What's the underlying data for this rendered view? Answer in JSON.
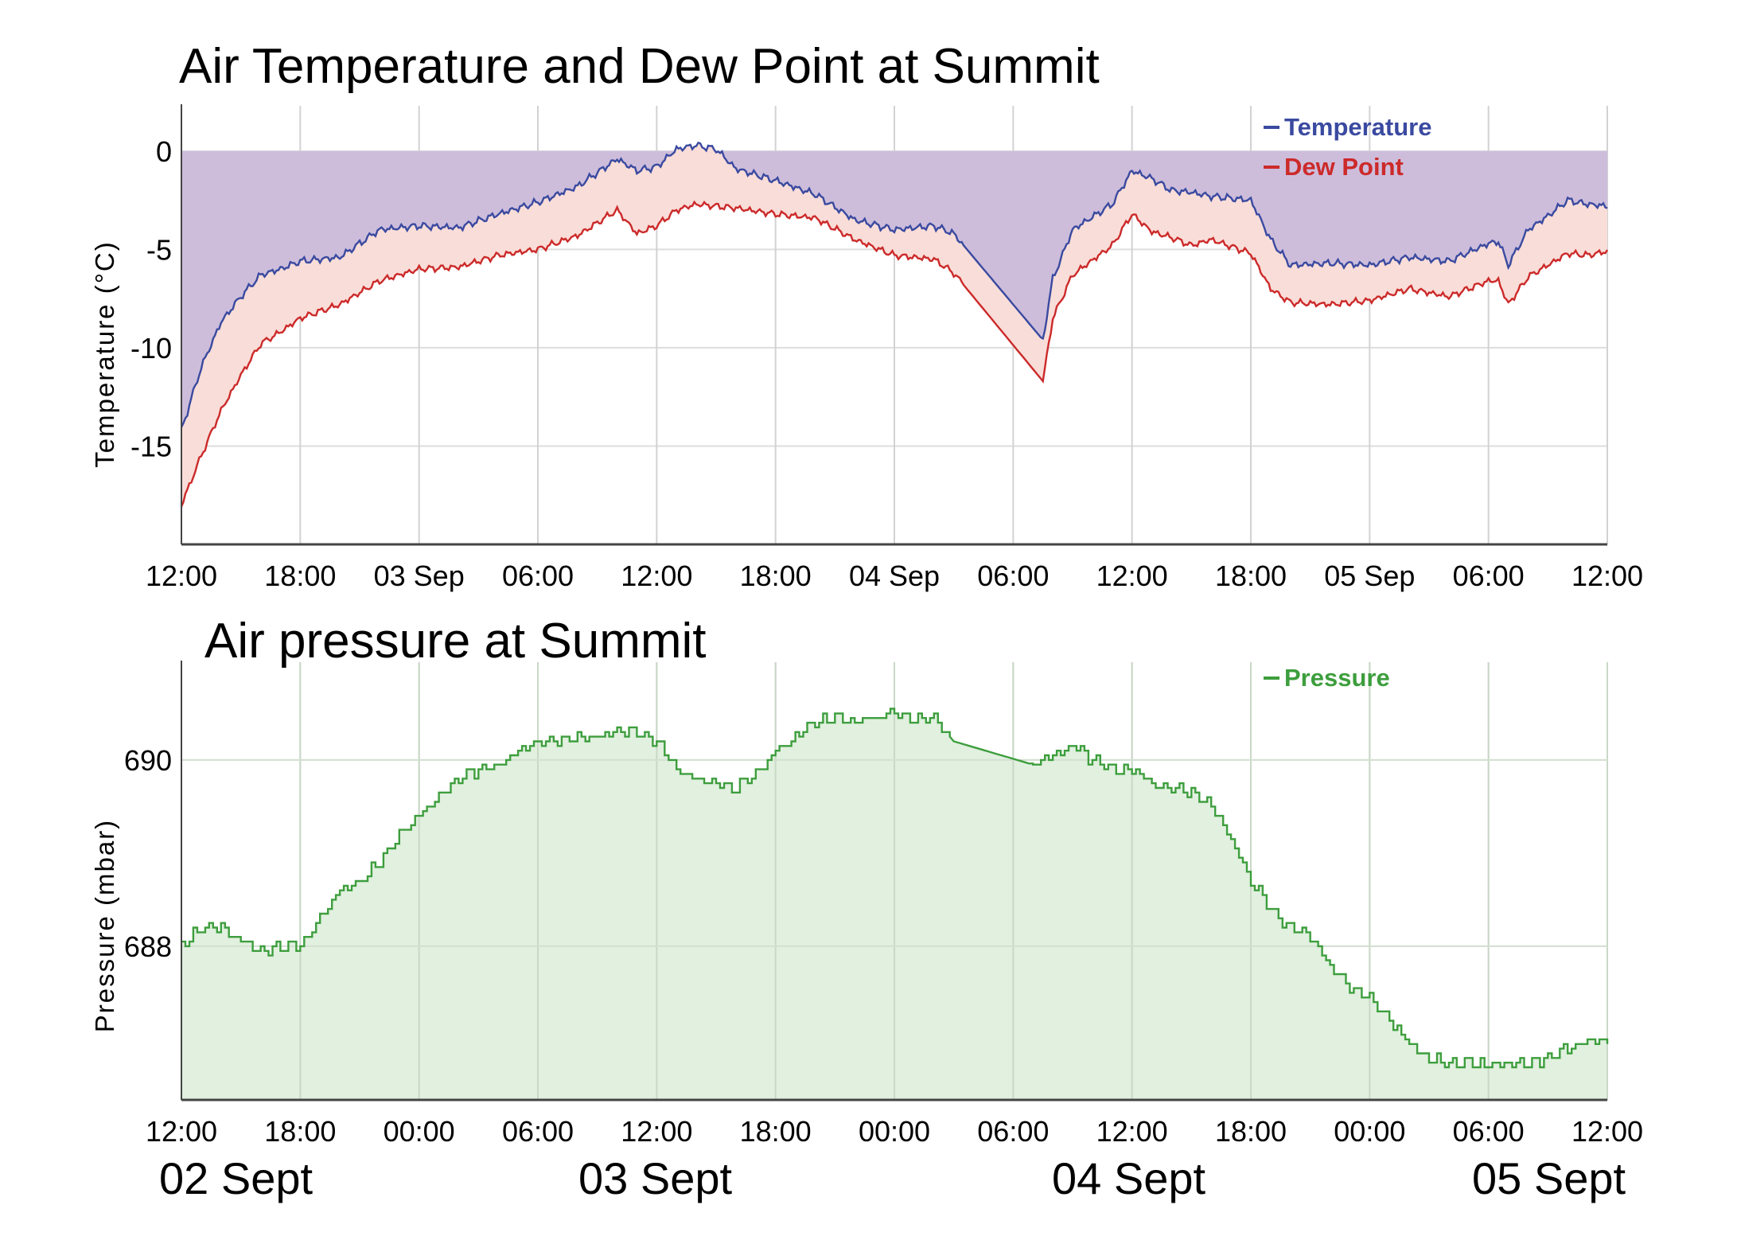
{
  "chart_data": [
    {
      "type": "line",
      "title": "Air Temperature and Dew Point at Summit",
      "xlabel": "",
      "ylabel": "Temperature (°C)",
      "ylim": [
        -20,
        2.3
      ],
      "yticks": [
        0,
        -5,
        -10,
        -15
      ],
      "ytick_labels": [
        "0",
        "-5",
        "-10",
        "-15"
      ],
      "xlim_hours": [
        0,
        72
      ],
      "xtick_hours": [
        0,
        6,
        12,
        18,
        24,
        30,
        36,
        42,
        48,
        54,
        60,
        66,
        72
      ],
      "xtick_labels": [
        "12:00",
        "18:00",
        "03 Sep",
        "06:00",
        "12:00",
        "18:00",
        "04 Sep",
        "06:00",
        "12:00",
        "18:00",
        "05 Sep",
        "06:00",
        "12:00"
      ],
      "x_unit": "hours since 02 Sep 12:00",
      "fill_above_to": 0,
      "legend": "top-right",
      "series": [
        {
          "name": "Temperature",
          "color": "#3a4aa0",
          "x": [
            0,
            1,
            2,
            3,
            4,
            5,
            6,
            8,
            10,
            12,
            14,
            16,
            18,
            20,
            22,
            23,
            24,
            25,
            26,
            27,
            28,
            30,
            32,
            34,
            36,
            38,
            39,
            43.5,
            44,
            45,
            47,
            48,
            49,
            50,
            51,
            52,
            54,
            55,
            56,
            58,
            60,
            62,
            64,
            66,
            66.5,
            67,
            68,
            69,
            70,
            71,
            72
          ],
          "values": [
            -14.2,
            -11,
            -8.7,
            -7.4,
            -6.3,
            -6,
            -5.6,
            -5.4,
            -4,
            -3.8,
            -3.9,
            -3.2,
            -2.6,
            -1.8,
            -0.4,
            -1,
            -0.8,
            0.1,
            0.3,
            0.1,
            -0.9,
            -1.5,
            -2.2,
            -3.5,
            -4,
            -3.8,
            -4.2,
            -9.6,
            -6.5,
            -4,
            -2.7,
            -1,
            -1.4,
            -2,
            -2.1,
            -2.3,
            -2.5,
            -4.5,
            -5.8,
            -5.7,
            -5.8,
            -5.4,
            -5.6,
            -4.7,
            -4.6,
            -5.8,
            -4,
            -3.3,
            -2.5,
            -2.7,
            -2.8
          ]
        },
        {
          "name": "Dew Point",
          "color": "#cc2a2a",
          "x": [
            0,
            1,
            2,
            3,
            4,
            5,
            6,
            8,
            10,
            12,
            14,
            16,
            18,
            20,
            22,
            23,
            24,
            25,
            26,
            27,
            28,
            30,
            32,
            34,
            36,
            38,
            39,
            43.5,
            44,
            45,
            47,
            48,
            49,
            50,
            51,
            52,
            54,
            55,
            56,
            58,
            60,
            62,
            64,
            66,
            66.5,
            67,
            68,
            69,
            70,
            71,
            72
          ],
          "values": [
            -18,
            -15.5,
            -13.2,
            -11.4,
            -9.8,
            -9.2,
            -8.5,
            -7.8,
            -6.6,
            -6,
            -5.9,
            -5.3,
            -5,
            -4.3,
            -3,
            -4.2,
            -3.8,
            -3,
            -2.7,
            -2.8,
            -2.9,
            -3.2,
            -3.4,
            -4.5,
            -5.3,
            -5.5,
            -6.2,
            -11.7,
            -8.5,
            -6.3,
            -4.8,
            -3.2,
            -4.1,
            -4.4,
            -4.8,
            -4.5,
            -5.2,
            -7,
            -7.7,
            -7.8,
            -7.6,
            -7,
            -7.4,
            -6.6,
            -6.6,
            -7.8,
            -6.4,
            -5.8,
            -5.2,
            -5.3,
            -5.1
          ]
        }
      ]
    },
    {
      "type": "area",
      "title": "Air pressure at Summit",
      "xlabel": "",
      "ylabel": "Pressure (mbar)",
      "ylim": [
        686.35,
        691.05
      ],
      "yticks": [
        690,
        688
      ],
      "ytick_labels": [
        "690",
        "688"
      ],
      "xlim_hours": [
        0,
        72
      ],
      "xtick_hours": [
        0,
        6,
        12,
        18,
        24,
        30,
        36,
        42,
        48,
        54,
        60,
        66,
        72
      ],
      "xtick_labels": [
        "12:00",
        "18:00",
        "00:00",
        "06:00",
        "12:00",
        "18:00",
        "00:00",
        "06:00",
        "12:00",
        "18:00",
        "00:00",
        "06:00",
        "12:00"
      ],
      "x_unit": "hours since 02 Sep 12:00",
      "legend": "top-right",
      "series": [
        {
          "name": "Pressure",
          "color": "#3d9e3d",
          "x": [
            0,
            1,
            2,
            3,
            4,
            5,
            6,
            7,
            8,
            9,
            10,
            11,
            12,
            13,
            14,
            15,
            16,
            17,
            18,
            19,
            20,
            21,
            22,
            23,
            24,
            25,
            26,
            27,
            28,
            29,
            30,
            31,
            32,
            33,
            34,
            35,
            36,
            37,
            38,
            39,
            43,
            44,
            45,
            46,
            47,
            48,
            49,
            50,
            51,
            52,
            53,
            54,
            55,
            56,
            57,
            58,
            59,
            60,
            61,
            62,
            63,
            64,
            65,
            66,
            67,
            68,
            69,
            70,
            71,
            72
          ],
          "values": [
            688,
            688.2,
            688.2,
            688.05,
            687.95,
            688,
            688,
            688.3,
            688.6,
            688.7,
            688.9,
            689.2,
            689.4,
            689.6,
            689.8,
            689.9,
            689.95,
            690.1,
            690.2,
            690.2,
            690.25,
            690.25,
            690.3,
            690.3,
            690.2,
            689.9,
            689.8,
            689.75,
            689.7,
            689.85,
            690.1,
            690.25,
            690.4,
            690.45,
            690.4,
            690.45,
            690.5,
            690.45,
            690.45,
            690.2,
            689.95,
            690.05,
            690.15,
            690,
            689.9,
            689.9,
            689.75,
            689.7,
            689.65,
            689.5,
            689.15,
            688.7,
            688.4,
            688.2,
            688.1,
            687.8,
            687.55,
            687.45,
            687.2,
            686.95,
            686.8,
            686.75,
            686.75,
            686.72,
            686.75,
            686.75,
            686.8,
            686.9,
            686.98,
            686.98
          ]
        }
      ]
    }
  ],
  "date_labels": [
    "02 Sept",
    "03 Sept",
    "04 Sept",
    "05 Sept"
  ],
  "colors": {
    "temperature": "#3a4aa0",
    "dew_point": "#cc2a2a",
    "pressure": "#3d9e3d",
    "purple_fill": "#cdbddb",
    "pink_fill": "#f9ddd8",
    "green_fill": "#e1f0df"
  }
}
